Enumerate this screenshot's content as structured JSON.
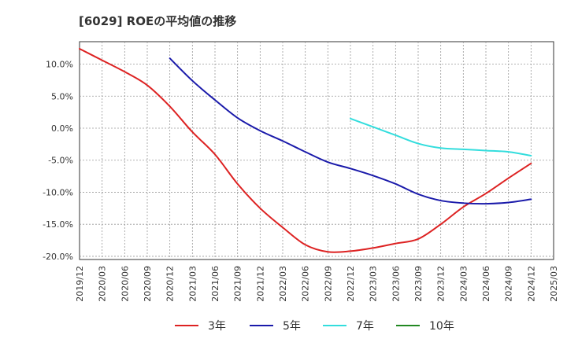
{
  "chart_data": {
    "type": "line",
    "title": "[6029]  ROEの平均値の推移",
    "xlabel": "",
    "ylabel": "",
    "ylim": [
      -20.5,
      13.5
    ],
    "grid": true,
    "legend_position": "bottom",
    "x": [
      "2019/12",
      "2020/03",
      "2020/06",
      "2020/09",
      "2020/12",
      "2021/03",
      "2021/06",
      "2021/09",
      "2021/12",
      "2022/03",
      "2022/06",
      "2022/09",
      "2022/12",
      "2023/03",
      "2023/06",
      "2023/09",
      "2023/12",
      "2024/03",
      "2024/06",
      "2024/09",
      "2024/12",
      "2025/03"
    ],
    "y_ticks": [
      {
        "value": 10,
        "label": "10.0%"
      },
      {
        "value": 5,
        "label": "5.0%"
      },
      {
        "value": 0,
        "label": "0.0%"
      },
      {
        "value": -5,
        "label": "-5.0%"
      },
      {
        "value": -10,
        "label": "-10.0%"
      },
      {
        "value": -15,
        "label": "-15.0%"
      },
      {
        "value": -20,
        "label": "-20.0%"
      }
    ],
    "series": [
      {
        "name": "3年",
        "color": "#dd2222",
        "values": [
          12.4,
          10.6,
          8.8,
          6.7,
          3.4,
          -0.6,
          -4.1,
          -8.7,
          -12.5,
          -15.5,
          -18.2,
          -19.3,
          -19.2,
          -18.7,
          -18.0,
          -17.3,
          -15.0,
          -12.3,
          -10.2,
          -7.8,
          -5.5,
          null
        ]
      },
      {
        "name": "5年",
        "color": "#1a1aaa",
        "values": [
          null,
          null,
          null,
          null,
          10.9,
          7.4,
          4.4,
          1.6,
          -0.4,
          -2.0,
          -3.7,
          -5.3,
          -6.3,
          -7.4,
          -8.7,
          -10.3,
          -11.3,
          -11.7,
          -11.8,
          -11.6,
          -11.1,
          null
        ]
      },
      {
        "name": "7年",
        "color": "#33dddd",
        "values": [
          null,
          null,
          null,
          null,
          null,
          null,
          null,
          null,
          null,
          null,
          null,
          null,
          1.5,
          0.2,
          -1.1,
          -2.4,
          -3.1,
          -3.3,
          -3.5,
          -3.7,
          -4.3,
          null
        ]
      },
      {
        "name": "10年",
        "color": "#228822",
        "values": [
          null,
          null,
          null,
          null,
          null,
          null,
          null,
          null,
          null,
          null,
          null,
          null,
          null,
          null,
          null,
          null,
          null,
          null,
          null,
          null,
          null,
          null
        ]
      }
    ]
  }
}
